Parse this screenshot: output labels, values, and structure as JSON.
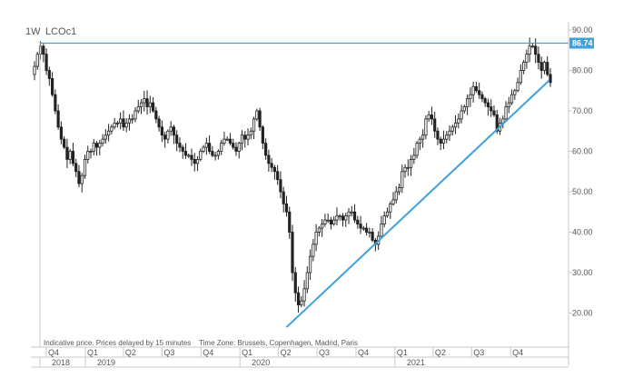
{
  "header": {
    "interval": "1W",
    "symbol": "LCOc1"
  },
  "note": "Indicative price. Prices delayed by 15 minutes    Time Zone: Brussels, Copenhagen, Madrid, Paris",
  "colors": {
    "candle": "#222222",
    "line": "#3ea0dc",
    "badge_bg": "#3ea0dc",
    "badge_text": "#ffffff",
    "axis": "#c9c9c9",
    "tick_text": "#555555"
  },
  "chart_data": {
    "type": "candlestick",
    "title": "",
    "xlabel": "",
    "ylabel": "",
    "ylim": [
      10,
      90
    ],
    "y_ticks": [
      "20.00",
      "30.00",
      "40.00",
      "50.00",
      "60.00",
      "70.00",
      "80.00",
      "90.00"
    ],
    "last_price_label": "86.74",
    "x_tick_quarters": [
      "Q4",
      "Q1",
      "Q2",
      "Q3",
      "Q4",
      "Q1",
      "Q2",
      "Q3",
      "Q4",
      "Q1",
      "Q2",
      "Q3",
      "Q4"
    ],
    "x_tick_years": [
      "2018",
      "2019",
      "2020",
      "2021"
    ],
    "horizontal_line": {
      "price": 86.74
    },
    "trendline": {
      "start": [
        "2020-04-20",
        16.5
      ],
      "end": [
        "2021-12-31",
        77.5
      ]
    },
    "grid": false,
    "legend": "none",
    "closes": [
      81,
      84,
      86,
      84,
      80,
      78,
      74,
      70,
      66,
      63,
      61,
      58,
      60,
      57,
      55,
      52,
      54,
      58,
      60,
      60,
      62,
      61,
      62,
      63,
      64,
      65,
      66,
      67,
      67,
      68,
      66,
      67,
      68,
      68,
      70,
      71,
      72,
      73,
      71,
      72,
      70,
      68,
      66,
      64,
      63,
      65,
      66,
      64,
      62,
      61,
      60,
      59,
      59,
      58,
      57,
      58,
      60,
      61,
      62,
      60,
      59,
      59,
      60,
      62,
      63,
      63,
      62,
      61,
      60,
      62,
      64,
      63,
      64,
      65,
      68,
      70,
      66,
      62,
      59,
      57,
      56,
      55,
      53,
      50,
      47,
      45,
      40,
      30,
      25,
      22,
      23,
      26,
      30,
      34,
      37,
      40,
      41,
      42,
      43,
      43,
      42,
      43,
      44,
      44,
      43,
      44,
      45,
      45,
      43,
      42,
      41,
      41,
      40,
      40,
      38,
      37,
      39,
      42,
      44,
      45,
      47,
      48,
      50,
      51,
      55,
      56,
      56,
      58,
      59,
      62,
      63,
      64,
      68,
      69,
      68,
      65,
      63,
      62,
      63,
      64,
      65,
      66,
      67,
      68,
      70,
      71,
      73,
      74,
      76,
      75,
      74,
      73,
      72,
      71,
      70,
      69,
      65,
      67,
      68,
      71,
      72,
      74,
      75,
      77,
      80,
      82,
      84,
      86,
      86,
      84,
      82,
      80,
      82,
      79,
      77
    ]
  }
}
